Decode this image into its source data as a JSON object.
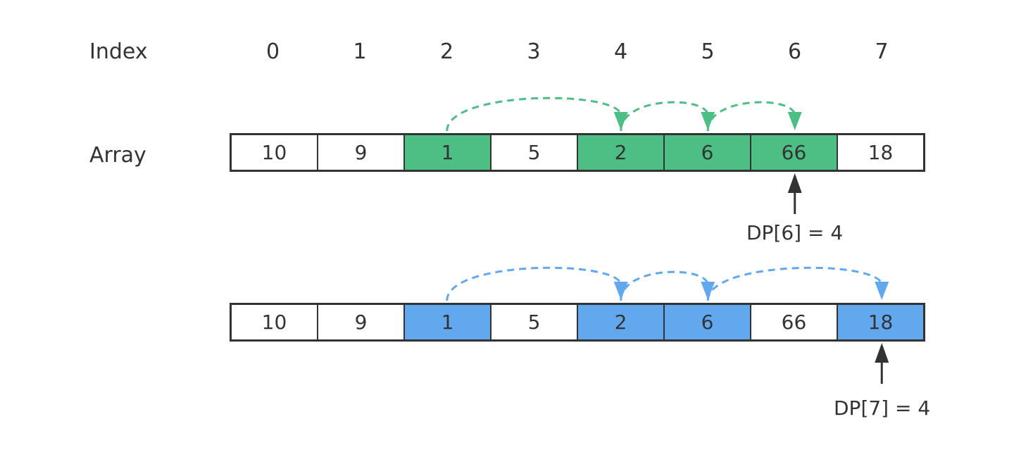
{
  "index_label": "Index",
  "array_label": "Array",
  "indices": [
    "0",
    "1",
    "2",
    "3",
    "4",
    "5",
    "6",
    "7"
  ],
  "colors": {
    "green": "#4dbf85",
    "blue": "#62a8ef",
    "dark": "#333333",
    "white": "#ffffff"
  },
  "rows": [
    {
      "values": [
        "10",
        "9",
        "1",
        "5",
        "2",
        "6",
        "66",
        "18"
      ],
      "highlight": [
        2,
        4,
        5,
        6
      ],
      "color": "#4dbf85",
      "path": [
        2,
        4,
        5,
        6
      ],
      "pointer_index": 6,
      "pointer_label": "DP[6] = 4"
    },
    {
      "values": [
        "10",
        "9",
        "1",
        "5",
        "2",
        "6",
        "66",
        "18"
      ],
      "highlight": [
        2,
        4,
        5,
        7
      ],
      "color": "#62a8ef",
      "path": [
        2,
        4,
        5,
        7
      ],
      "pointer_index": 7,
      "pointer_label": "DP[7] = 4"
    }
  ]
}
